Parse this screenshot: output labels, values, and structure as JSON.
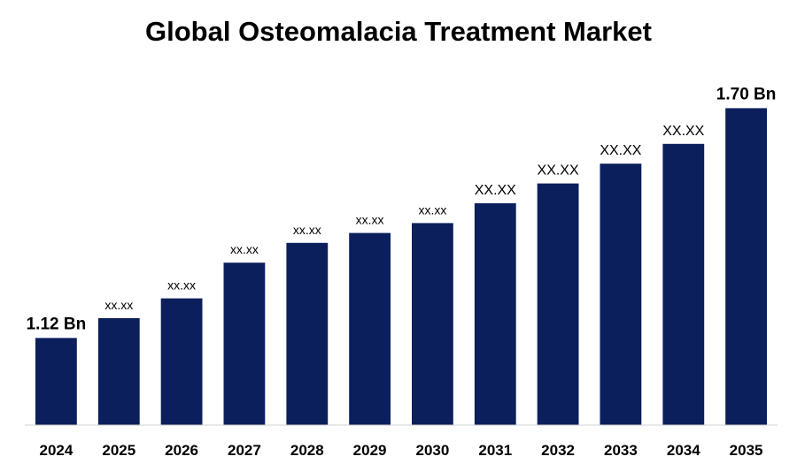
{
  "chart_data": {
    "type": "bar",
    "title": "Global Osteomalacia Treatment Market",
    "xlabel": "",
    "ylabel": "",
    "categories": [
      "2024",
      "2025",
      "2026",
      "2027",
      "2028",
      "2029",
      "2030",
      "2031",
      "2032",
      "2033",
      "2034",
      "2035"
    ],
    "values": [
      1.12,
      1.17,
      1.22,
      1.31,
      1.36,
      1.385,
      1.41,
      1.46,
      1.51,
      1.56,
      1.61,
      1.7
    ],
    "data_labels": [
      "1.12 Bn",
      "xx.xx",
      "xx.xx",
      "xx.xx",
      "xx.xx",
      "xx.xx",
      "xx.xx",
      "XX.XX",
      "XX.XX",
      "XX.XX",
      "XX.XX",
      "1.70 Bn"
    ],
    "ylim": [
      0.9,
      1.75
    ],
    "bar_color": "#0b1f5c",
    "grid": false,
    "legend": "none"
  }
}
